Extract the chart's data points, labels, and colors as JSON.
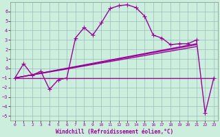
{
  "title": "",
  "xlabel": "Windchill (Refroidissement éolien,°C)",
  "ylabel": "",
  "bg_color": "#cceedd",
  "line_color": "#990099",
  "grid_color": "#99bbbb",
  "xlim": [
    -0.5,
    23.5
  ],
  "ylim": [
    -5.5,
    7.0
  ],
  "yticks": [
    -5,
    -4,
    -3,
    -2,
    -1,
    0,
    1,
    2,
    3,
    4,
    5,
    6
  ],
  "xticks": [
    0,
    1,
    2,
    3,
    4,
    5,
    6,
    7,
    8,
    9,
    10,
    11,
    12,
    13,
    14,
    15,
    16,
    17,
    18,
    19,
    20,
    21,
    22,
    23
  ],
  "series1_x": [
    0,
    1,
    2,
    3,
    4,
    5,
    6,
    7,
    8,
    9,
    10,
    11,
    12,
    13,
    14,
    15,
    16,
    17,
    18,
    19,
    20,
    21,
    22,
    23
  ],
  "series1_y": [
    -1.0,
    0.5,
    -0.7,
    -0.3,
    -2.2,
    -1.2,
    -1.0,
    3.2,
    4.3,
    3.5,
    4.8,
    6.3,
    6.6,
    6.7,
    6.4,
    5.5,
    3.5,
    3.2,
    2.5,
    2.6,
    2.6,
    3.0,
    -4.7,
    -1.0
  ],
  "series2_x": [
    0,
    21,
    22,
    23
  ],
  "series2_y": [
    -1.0,
    -1.0,
    -1.0,
    -1.0
  ],
  "series3_x": [
    0,
    21
  ],
  "series3_y": [
    -1.0,
    2.6
  ],
  "series4_x": [
    0,
    21
  ],
  "series4_y": [
    -1.0,
    2.5
  ],
  "series5_x": [
    0,
    21
  ],
  "series5_y": [
    -1.0,
    2.3
  ],
  "marker": "+",
  "markersize": 4,
  "linewidth": 1.0
}
